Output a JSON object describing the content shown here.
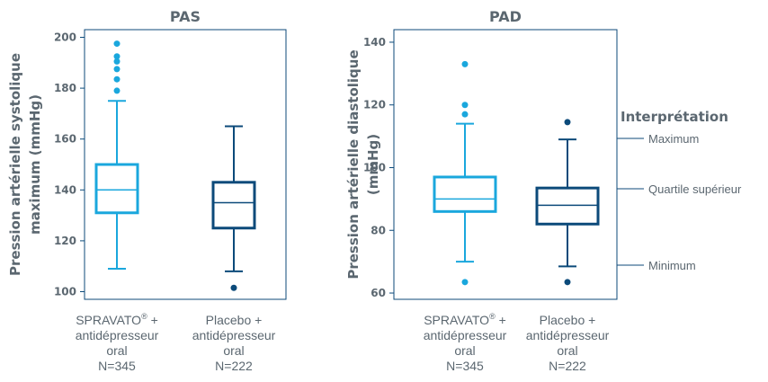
{
  "colors": {
    "light": "#1aa7dd",
    "dark": "#0c4a7a",
    "axis": "#0c4a7a",
    "text": "#5b6770"
  },
  "chart_data": [
    {
      "type": "boxplot",
      "title": "PAS",
      "ylabel_lines": [
        "Pression artérielle systolique",
        "maximum (mmHg)"
      ],
      "ylim": [
        97,
        203
      ],
      "yticks": [
        100,
        120,
        140,
        160,
        180,
        200
      ],
      "categories": [
        {
          "lines": [
            "SPRAVATO",
            "antidépresseur",
            "oral",
            "N=345"
          ],
          "mark": "®",
          "mark_after": " +"
        },
        {
          "lines": [
            "Placebo +",
            "antidépresseur",
            "oral",
            "N=222"
          ]
        }
      ],
      "series": [
        {
          "min": 109,
          "q1": 131,
          "median": 140,
          "q3": 150,
          "max": 175,
          "outliers": [
            179,
            183.5,
            187.5,
            190.5,
            192.5,
            197.5
          ],
          "color": "light"
        },
        {
          "min": 108,
          "q1": 125,
          "median": 135,
          "q3": 143,
          "max": 165,
          "outliers": [
            101.5
          ],
          "color": "dark"
        }
      ]
    },
    {
      "type": "boxplot",
      "title": "PAD",
      "ylabel_lines": [
        "Pression artérielle diastolique",
        "(mmHg)"
      ],
      "ylim": [
        58,
        144
      ],
      "yticks": [
        60,
        80,
        100,
        120,
        140
      ],
      "categories": [
        {
          "lines": [
            "SPRAVATO",
            "antidépresseur",
            "oral",
            "N=345"
          ],
          "mark": "®",
          "mark_after": " +"
        },
        {
          "lines": [
            "Placebo +",
            "antidépresseur",
            "oral",
            "N=222"
          ]
        }
      ],
      "series": [
        {
          "min": 70,
          "q1": 86,
          "median": 90,
          "q3": 97,
          "max": 114,
          "outliers": [
            63.5,
            117,
            120,
            133
          ],
          "color": "light"
        },
        {
          "min": 68.5,
          "q1": 82,
          "median": 88,
          "q3": 93.5,
          "max": 109,
          "outliers": [
            63.5,
            114.5
          ],
          "color": "dark"
        }
      ]
    }
  ],
  "legend": {
    "title": "Interprétation",
    "items": [
      "Maximum",
      "Quartile supérieur",
      "Minimum"
    ]
  }
}
